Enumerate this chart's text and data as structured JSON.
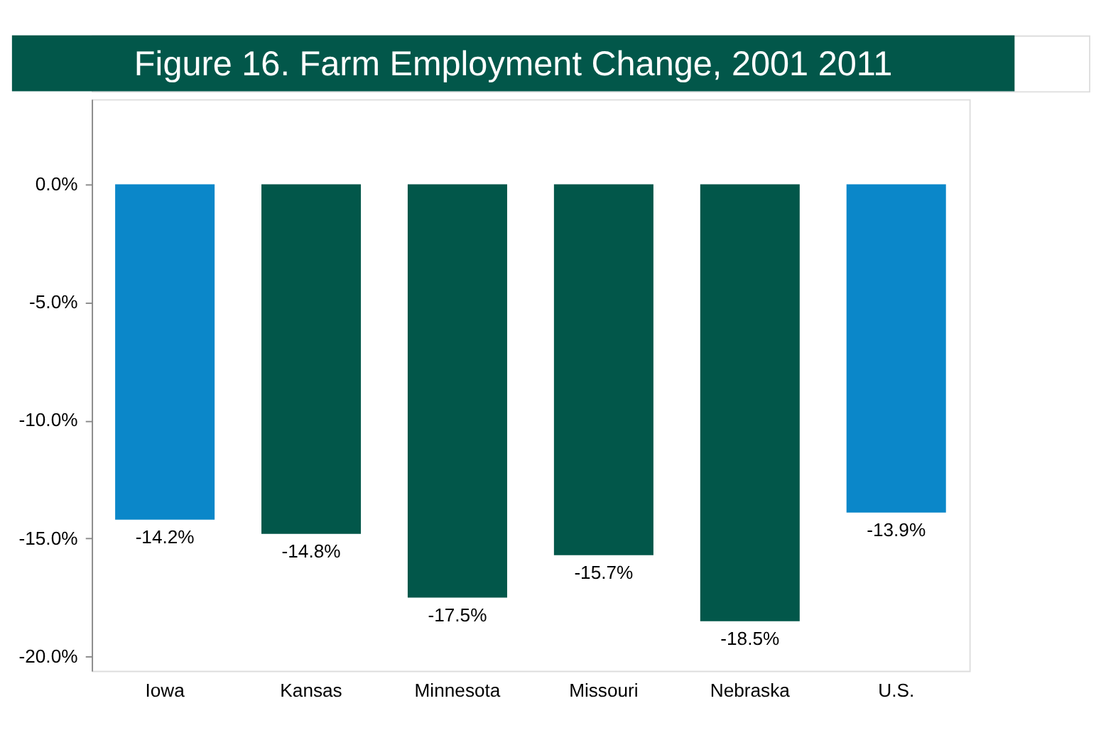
{
  "chart_data": {
    "type": "bar",
    "title": "Figure 16. Farm Employment Change, 2001 2011",
    "categories": [
      "Iowa",
      "Kansas",
      "Minnesota",
      "Missouri",
      "Nebraska",
      "U.S."
    ],
    "values": [
      -14.2,
      -14.8,
      -17.5,
      -15.7,
      -18.5,
      -13.9
    ],
    "colors": [
      "#0b87c9",
      "#02574a",
      "#02574a",
      "#02574a",
      "#02574a",
      "#0b87c9"
    ],
    "value_labels": [
      "-14.2%",
      "-14.8%",
      "-17.5%",
      "-15.7%",
      "-18.5%",
      "-13.9%"
    ],
    "ylim": [
      -20.6,
      3.6
    ],
    "yticks": [
      {
        "value": 0,
        "label": "0.0%"
      },
      {
        "value": -5,
        "label": "-5.0%"
      },
      {
        "value": -10,
        "label": "-10.0%"
      },
      {
        "value": -15,
        "label": "-15.0%"
      },
      {
        "value": -20,
        "label": "-20.0%"
      }
    ],
    "grid": false
  }
}
